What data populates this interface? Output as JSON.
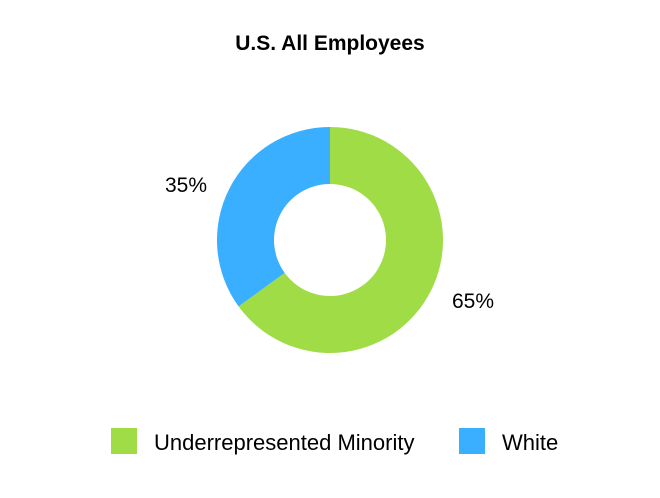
{
  "chart_data": {
    "type": "pie",
    "style": "donut",
    "title": "U.S. All Employees",
    "slices": [
      {
        "name": "Underrepresented Minority",
        "value": 65,
        "label": "65%",
        "color": "#9fdc45"
      },
      {
        "name": "White",
        "value": 35,
        "label": "35%",
        "color": "#3aaeff"
      }
    ],
    "legend_position": "bottom"
  }
}
